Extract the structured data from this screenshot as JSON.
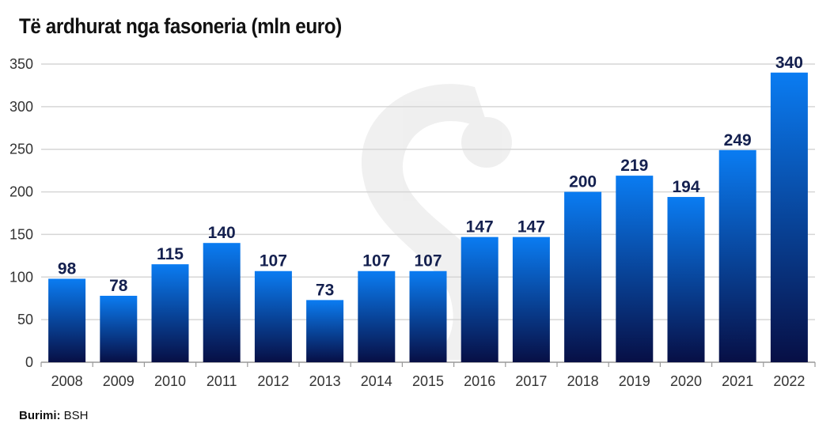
{
  "chart_data": {
    "type": "bar",
    "title": "Të ardhurat nga fasoneria (mln euro)",
    "categories": [
      "2008",
      "2009",
      "2010",
      "2011",
      "2012",
      "2013",
      "2014",
      "2015",
      "2016",
      "2017",
      "2018",
      "2019",
      "2020",
      "2021",
      "2022"
    ],
    "values": [
      98,
      78,
      115,
      140,
      107,
      73,
      107,
      107,
      147,
      147,
      200,
      219,
      194,
      249,
      340
    ],
    "xlabel": "",
    "ylabel": "",
    "ylim": [
      0,
      350
    ],
    "yticks": [
      0,
      50,
      100,
      150,
      200,
      250,
      300,
      350
    ],
    "grid": true,
    "source_label": "Burimi:",
    "source_value": "BSH",
    "colors": {
      "bar_top": "#0a7cf2",
      "bar_bottom": "#070f45",
      "label": "#14204f",
      "grid": "#d6d6d6"
    }
  }
}
